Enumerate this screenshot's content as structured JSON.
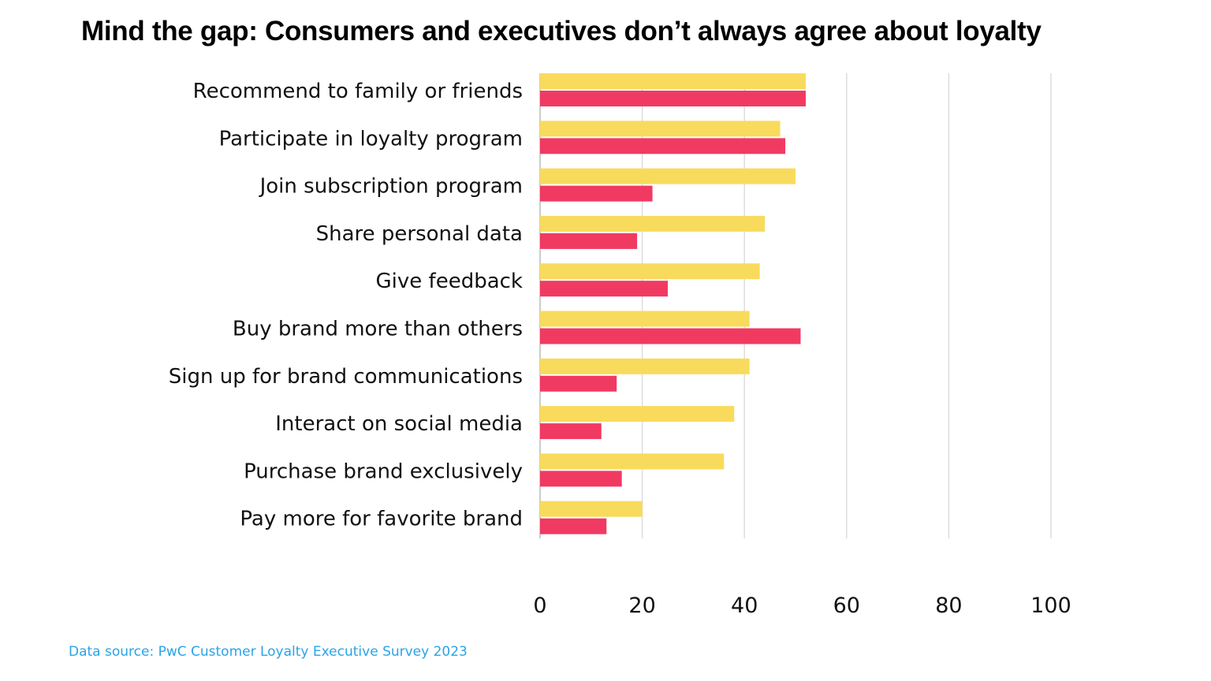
{
  "chart_data": {
    "type": "bar",
    "orientation": "horizontal",
    "title": "Mind the gap: Consumers and executives don’t always agree about loyalty",
    "categories": [
      "Recommend to family or friends",
      "Participate in loyalty program",
      "Join subscription program",
      "Share personal data",
      "Give feedback",
      "Buy brand more than others",
      "Sign up for brand communications",
      "Interact on social media",
      "Purchase brand exclusively",
      "Pay more for favorite brand"
    ],
    "series": [
      {
        "values": [
          52,
          47,
          50,
          44,
          43,
          41,
          41,
          38,
          36,
          20
        ],
        "color": "#F8DB5C"
      },
      {
        "values": [
          52,
          48,
          22,
          19,
          25,
          51,
          15,
          12,
          16,
          13
        ],
        "color": "#F13A62"
      }
    ],
    "xlim": [
      0,
      100
    ],
    "xticks": [
      "0",
      "20",
      "40",
      "60",
      "80",
      "100"
    ],
    "grid": true,
    "legend": "none"
  },
  "source": "Data source: PwC Customer Loyalty Executive Survey 2023"
}
